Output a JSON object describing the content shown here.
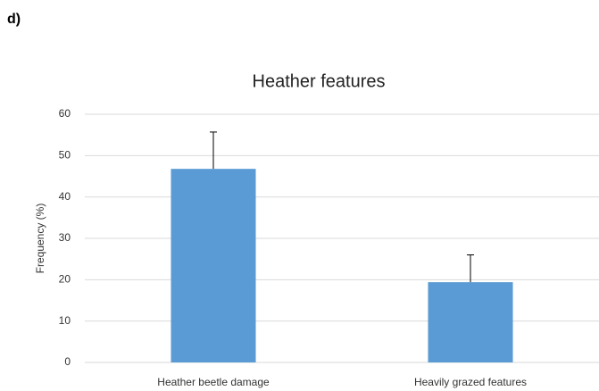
{
  "panel_label": "d)",
  "chart_data": {
    "type": "bar",
    "title": "Heather features",
    "y_label": "Frequency (%)",
    "categories": [
      "Heather beetle damage",
      "Heavily grazed features"
    ],
    "values": [
      46.8,
      19.4
    ],
    "errors": [
      8.9,
      6.6
    ],
    "color": "#5b9bd5",
    "ylim": [
      0,
      60
    ],
    "yticks": [
      0,
      10,
      20,
      30,
      40,
      50,
      60
    ],
    "grid": true
  }
}
